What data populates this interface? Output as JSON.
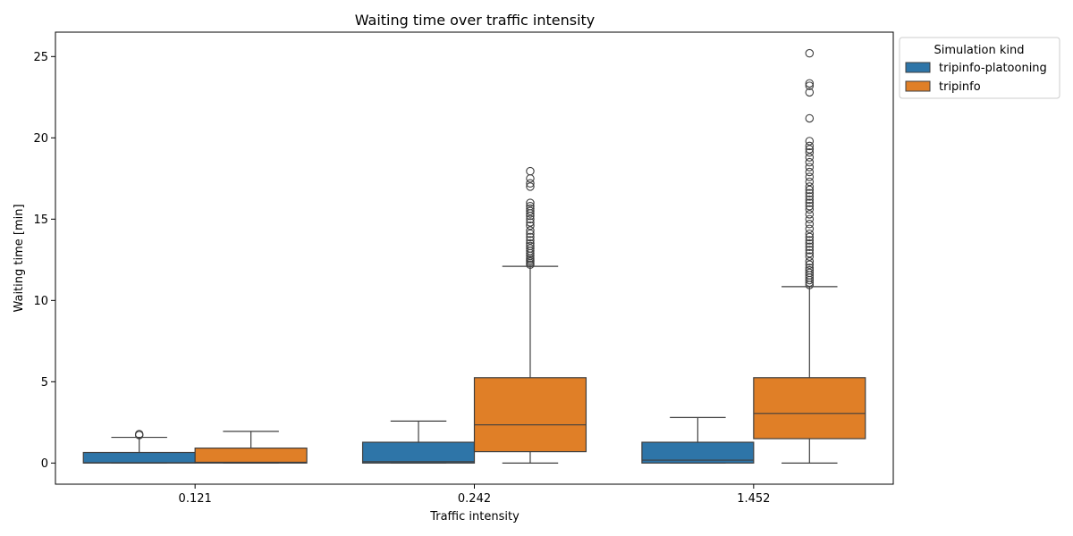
{
  "chart_data": {
    "type": "box",
    "title": "Waiting time over traffic intensity",
    "xlabel": "Traffic intensity",
    "ylabel": "Waiting time [min]",
    "categories": [
      "0.121",
      "0.242",
      "1.452"
    ],
    "ylim": [
      -1.3,
      26.5
    ],
    "yticks": [
      0,
      5,
      10,
      15,
      20,
      25
    ],
    "grid": false,
    "legend": {
      "title": "Simulation kind",
      "placement": "upper-right-outside"
    },
    "series": [
      {
        "name": "tripinfo-platooning",
        "color": "#2e75a8",
        "boxes": [
          {
            "category": "0.121",
            "whisker_low": 0.0,
            "q1": 0.0,
            "median": 0.02,
            "q3": 0.65,
            "whisker_high": 1.58,
            "outliers": [
              1.72,
              1.78
            ]
          },
          {
            "category": "0.242",
            "whisker_low": 0.0,
            "q1": 0.0,
            "median": 0.08,
            "q3": 1.28,
            "whisker_high": 2.58,
            "outliers": []
          },
          {
            "category": "1.452",
            "whisker_low": 0.0,
            "q1": 0.0,
            "median": 0.18,
            "q3": 1.28,
            "whisker_high": 2.8,
            "outliers": []
          }
        ]
      },
      {
        "name": "tripinfo",
        "color": "#e07f27",
        "boxes": [
          {
            "category": "0.121",
            "whisker_low": 0.0,
            "q1": 0.0,
            "median": 0.05,
            "q3": 0.92,
            "whisker_high": 1.95,
            "outliers": []
          },
          {
            "category": "0.242",
            "whisker_low": 0.0,
            "q1": 0.7,
            "median": 2.35,
            "q3": 5.25,
            "whisker_high": 12.1,
            "outliers": [
              12.2,
              12.3,
              12.4,
              12.5,
              12.6,
              12.75,
              12.9,
              13.05,
              13.2,
              13.35,
              13.5,
              13.7,
              13.9,
              14.1,
              14.3,
              14.6,
              14.8,
              15.0,
              15.2,
              15.35,
              15.5,
              15.65,
              15.8,
              16.0,
              17.0,
              17.2,
              17.5,
              17.95
            ]
          },
          {
            "category": "1.452",
            "whisker_low": 0.0,
            "q1": 1.5,
            "median": 3.05,
            "q3": 5.25,
            "whisker_high": 10.85,
            "outliers": [
              10.95,
              11.1,
              11.25,
              11.4,
              11.55,
              11.7,
              11.85,
              12.0,
              12.2,
              12.4,
              12.7,
              12.9,
              13.1,
              13.3,
              13.5,
              13.7,
              13.9,
              14.1,
              14.4,
              14.7,
              15.0,
              15.3,
              15.6,
              15.8,
              16.0,
              16.2,
              16.4,
              16.6,
              16.8,
              17.0,
              17.3,
              17.6,
              17.9,
              18.2,
              18.5,
              18.8,
              19.1,
              19.3,
              19.5,
              19.8,
              21.2,
              22.8,
              23.2,
              23.35,
              25.2
            ]
          }
        ]
      }
    ]
  }
}
